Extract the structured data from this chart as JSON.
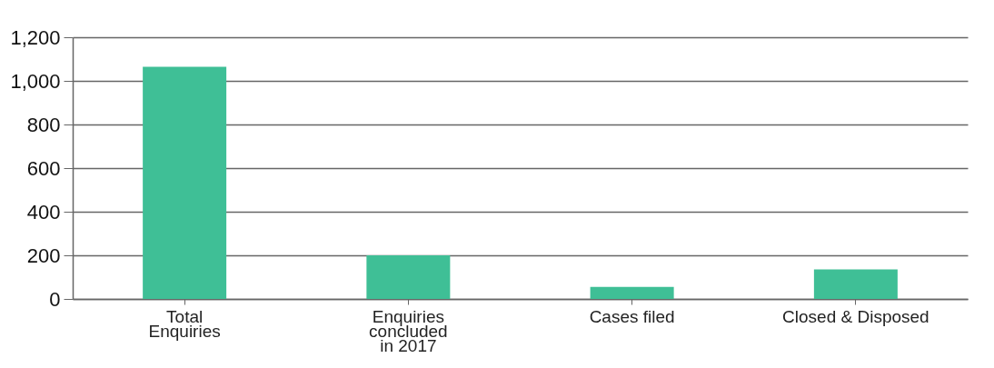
{
  "chart_data": {
    "type": "bar",
    "categories": [
      "Total\nEnquiries",
      "Enquiries\nconcluded\nin 2017",
      "Cases filed",
      "Closed & Disposed"
    ],
    "values": [
      1065,
      200,
      55,
      135
    ],
    "color": "#3fbf96",
    "ylim": [
      0,
      1200
    ],
    "yticks": [
      {
        "value": 0,
        "label": "0"
      },
      {
        "value": 200,
        "label": "200"
      },
      {
        "value": 400,
        "label": "400"
      },
      {
        "value": 600,
        "label": "600"
      },
      {
        "value": 800,
        "label": "800"
      },
      {
        "value": 1000,
        "label": "1,000"
      },
      {
        "value": 1200,
        "label": "1,200"
      }
    ],
    "grid": "y"
  }
}
